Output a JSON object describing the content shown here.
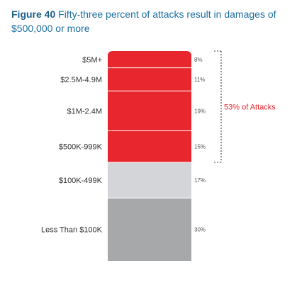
{
  "figure_label": "Figure 40",
  "title_line1": "Fifty-three percent of attacks result in damages of",
  "title_line2": "$500,000 or more",
  "chart_data": {
    "type": "bar",
    "stacked": true,
    "categories": [
      "$5M+",
      "$2.5M-4.9M",
      "$1M-2.4M",
      "$500K-999K",
      "$100K-499K",
      "Less Than $100K"
    ],
    "values": [
      8,
      11,
      19,
      15,
      17,
      30
    ],
    "value_labels": [
      "8%",
      "11%",
      "19%",
      "15%",
      "17%",
      "30%"
    ],
    "colors": [
      "#e8262e",
      "#e8262e",
      "#e8262e",
      "#e8262e",
      "#d3d5d8",
      "#a7a8aa"
    ],
    "annotation": {
      "text": "53% of Attacks",
      "spans_categories": [
        "$5M+",
        "$2.5M-4.9M",
        "$1M-2.4M",
        "$500K-999K"
      ],
      "color": "#e8262e"
    }
  }
}
